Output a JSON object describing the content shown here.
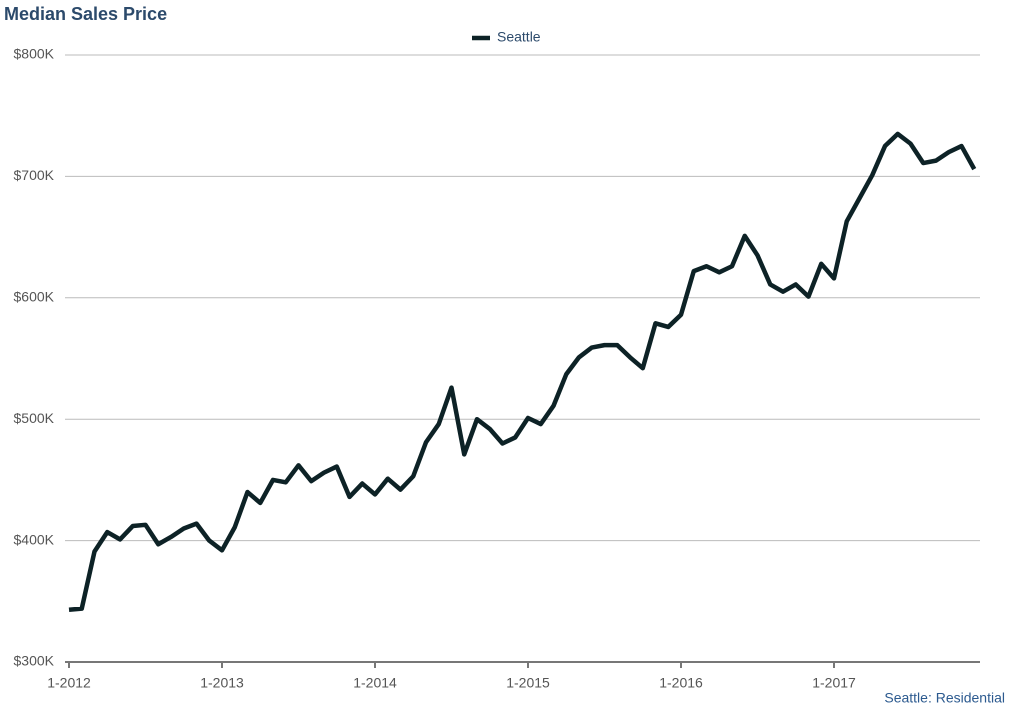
{
  "chart_data": {
    "type": "line",
    "title": "Median Sales Price",
    "annotation": "Seattle: Residential",
    "categories": [
      "1-2012",
      null,
      null,
      null,
      null,
      null,
      null,
      null,
      null,
      null,
      null,
      null,
      "1-2013",
      null,
      null,
      null,
      null,
      null,
      null,
      null,
      null,
      null,
      null,
      null,
      "1-2014",
      null,
      null,
      null,
      null,
      null,
      null,
      null,
      null,
      null,
      null,
      null,
      "1-2015",
      null,
      null,
      null,
      null,
      null,
      null,
      null,
      null,
      null,
      null,
      null,
      "1-2016",
      null,
      null,
      null,
      null,
      null,
      null,
      null,
      null,
      null,
      null,
      null,
      "1-2017",
      null,
      null,
      null,
      null,
      null,
      null,
      null,
      null,
      null,
      null,
      null
    ],
    "series": [
      {
        "name": "Seattle",
        "color": "#0d2226",
        "values": [
          343000,
          344000,
          391000,
          407000,
          401000,
          412000,
          413000,
          397000,
          403000,
          410000,
          414000,
          400000,
          392000,
          411000,
          440000,
          431000,
          450000,
          448000,
          462000,
          449000,
          456000,
          461000,
          436000,
          447000,
          438000,
          451000,
          442000,
          453000,
          481000,
          496000,
          526000,
          471000,
          500000,
          492000,
          480000,
          485000,
          501000,
          496000,
          511000,
          537000,
          551000,
          559000,
          561000,
          561000,
          551000,
          542000,
          579000,
          576000,
          586000,
          622000,
          626000,
          621000,
          626000,
          651000,
          635000,
          611000,
          605000,
          611000,
          601000,
          628000,
          616000,
          663000,
          682000,
          701000,
          725000,
          735000,
          727000,
          711000,
          713000,
          720000,
          725000,
          706000
        ]
      }
    ],
    "ylim": [
      300000,
      800000
    ],
    "yticks": [
      {
        "value": 300000,
        "label": "$300K"
      },
      {
        "value": 400000,
        "label": "$400K"
      },
      {
        "value": 500000,
        "label": "$500K"
      },
      {
        "value": 600000,
        "label": "$600K"
      },
      {
        "value": 700000,
        "label": "$700K"
      },
      {
        "value": 800000,
        "label": "$800K"
      }
    ],
    "grid": true,
    "legend": "top"
  }
}
